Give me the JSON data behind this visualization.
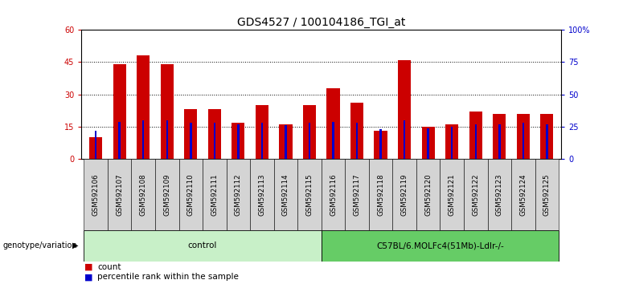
{
  "title": "GDS4527 / 100104186_TGI_at",
  "samples": [
    "GSM592106",
    "GSM592107",
    "GSM592108",
    "GSM592109",
    "GSM592110",
    "GSM592111",
    "GSM592112",
    "GSM592113",
    "GSM592114",
    "GSM592115",
    "GSM592116",
    "GSM592117",
    "GSM592118",
    "GSM592119",
    "GSM592120",
    "GSM592121",
    "GSM592122",
    "GSM592123",
    "GSM592124",
    "GSM592125"
  ],
  "counts": [
    10,
    44,
    48,
    44,
    23,
    23,
    17,
    25,
    16,
    25,
    33,
    26,
    13,
    46,
    15,
    16,
    22,
    21,
    21,
    21
  ],
  "percentiles": [
    22,
    29,
    30,
    30,
    28,
    28,
    27,
    28,
    26,
    28,
    29,
    28,
    23,
    30,
    24,
    25,
    27,
    27,
    28,
    27
  ],
  "bar_color": "#cc0000",
  "pct_color": "#0000cc",
  "ylim_left": [
    0,
    60
  ],
  "ylim_right": [
    0,
    100
  ],
  "yticks_left": [
    0,
    15,
    30,
    45,
    60
  ],
  "yticks_right": [
    0,
    25,
    50,
    75,
    100
  ],
  "ytick_labels_right": [
    "0",
    "25",
    "50",
    "75",
    "100%"
  ],
  "groups": [
    {
      "label": "control",
      "start": 0,
      "end": 9,
      "color": "#c8f0c8"
    },
    {
      "label": "C57BL/6.MOLFc4(51Mb)-Ldlr-/-",
      "start": 10,
      "end": 19,
      "color": "#66cc66"
    }
  ],
  "group_label_prefix": "genotype/variation",
  "legend_count_label": "count",
  "legend_pct_label": "percentile rank within the sample",
  "bg_color": "#ffffff",
  "plot_bg": "#ffffff",
  "title_fontsize": 10,
  "tick_fontsize": 7,
  "bar_width": 0.55,
  "cell_color": "#d4d4d4"
}
